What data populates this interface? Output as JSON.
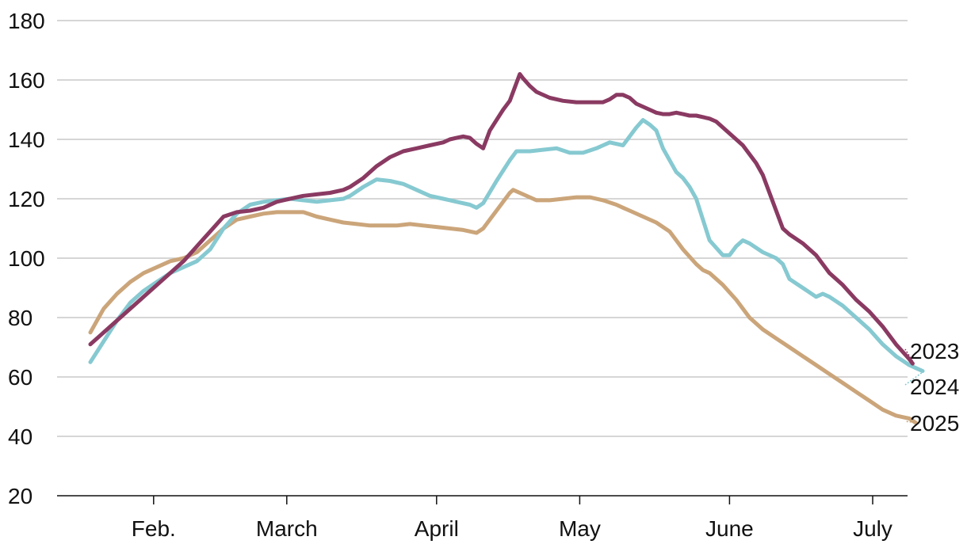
{
  "chart_data": {
    "type": "line",
    "title": "",
    "xlabel": "",
    "ylabel": "",
    "ylim": [
      20,
      180
    ],
    "y_ticks": [
      "20",
      "40",
      "60",
      "80",
      "100",
      "120",
      "140",
      "160",
      "180"
    ],
    "x_ticks": [
      "Feb.",
      "March",
      "April",
      "May",
      "June",
      "July"
    ],
    "grid": "horizontal",
    "legend": "inline labels at right end of lines",
    "series": [
      {
        "name": "2023",
        "color": "#8a3a62",
        "points": [
          [
            10,
            71
          ],
          [
            14,
            75
          ],
          [
            18,
            79
          ],
          [
            22,
            83
          ],
          [
            26,
            87
          ],
          [
            30,
            91
          ],
          [
            34,
            95
          ],
          [
            38,
            99
          ],
          [
            42,
            104
          ],
          [
            46,
            109
          ],
          [
            50,
            114
          ],
          [
            54,
            115.5
          ],
          [
            58,
            116
          ],
          [
            62,
            117
          ],
          [
            66,
            119
          ],
          [
            70,
            120
          ],
          [
            74,
            121
          ],
          [
            78,
            121.5
          ],
          [
            82,
            122
          ],
          [
            86,
            123
          ],
          [
            88,
            124
          ],
          [
            92,
            127
          ],
          [
            96,
            131
          ],
          [
            100,
            134
          ],
          [
            104,
            136
          ],
          [
            108,
            137
          ],
          [
            112,
            138
          ],
          [
            116,
            139
          ],
          [
            118,
            140
          ],
          [
            120,
            140.5
          ],
          [
            122,
            141
          ],
          [
            124,
            140.5
          ],
          [
            126,
            138.5
          ],
          [
            128,
            137
          ],
          [
            130,
            143
          ],
          [
            134,
            150
          ],
          [
            136,
            153
          ],
          [
            138,
            159
          ],
          [
            139,
            162
          ],
          [
            140,
            160.5
          ],
          [
            142,
            158
          ],
          [
            144,
            156
          ],
          [
            148,
            154
          ],
          [
            152,
            153
          ],
          [
            156,
            152.5
          ],
          [
            160,
            152.5
          ],
          [
            164,
            152.5
          ],
          [
            166,
            153.5
          ],
          [
            168,
            155
          ],
          [
            170,
            155
          ],
          [
            172,
            154
          ],
          [
            174,
            152
          ],
          [
            178,
            150
          ],
          [
            180,
            149
          ],
          [
            182,
            148.5
          ],
          [
            184,
            148.5
          ],
          [
            186,
            149
          ],
          [
            188,
            148.5
          ],
          [
            190,
            148
          ],
          [
            192,
            148
          ],
          [
            196,
            147
          ],
          [
            198,
            146
          ],
          [
            200,
            144
          ],
          [
            204,
            140
          ],
          [
            206,
            138
          ],
          [
            208,
            135
          ],
          [
            210,
            132
          ],
          [
            212,
            128
          ],
          [
            214,
            122
          ],
          [
            216,
            116
          ],
          [
            218,
            110
          ],
          [
            220,
            108
          ],
          [
            224,
            105
          ],
          [
            228,
            101
          ],
          [
            230,
            98
          ],
          [
            232,
            95
          ],
          [
            236,
            91
          ],
          [
            240,
            86
          ],
          [
            244,
            82
          ],
          [
            248,
            77
          ],
          [
            252,
            71
          ],
          [
            256,
            66
          ],
          [
            257,
            64.5
          ]
        ]
      },
      {
        "name": "2024",
        "color": "#86c9d1",
        "points": [
          [
            10,
            65
          ],
          [
            14,
            72
          ],
          [
            18,
            79
          ],
          [
            22,
            85
          ],
          [
            26,
            89
          ],
          [
            30,
            92
          ],
          [
            34,
            95
          ],
          [
            38,
            97
          ],
          [
            42,
            99
          ],
          [
            46,
            103
          ],
          [
            50,
            110
          ],
          [
            54,
            115
          ],
          [
            58,
            118
          ],
          [
            62,
            119
          ],
          [
            66,
            119.5
          ],
          [
            70,
            120
          ],
          [
            74,
            119.5
          ],
          [
            78,
            119
          ],
          [
            82,
            119.5
          ],
          [
            86,
            120
          ],
          [
            88,
            121
          ],
          [
            92,
            124
          ],
          [
            96,
            126.5
          ],
          [
            100,
            126
          ],
          [
            104,
            125
          ],
          [
            108,
            123
          ],
          [
            112,
            121
          ],
          [
            116,
            120
          ],
          [
            120,
            119
          ],
          [
            124,
            118
          ],
          [
            126,
            117
          ],
          [
            128,
            118.5
          ],
          [
            132,
            126
          ],
          [
            136,
            133
          ],
          [
            138,
            136
          ],
          [
            142,
            136
          ],
          [
            146,
            136.5
          ],
          [
            150,
            137
          ],
          [
            154,
            135.5
          ],
          [
            158,
            135.5
          ],
          [
            162,
            137
          ],
          [
            166,
            139
          ],
          [
            170,
            138
          ],
          [
            172,
            141
          ],
          [
            174,
            144
          ],
          [
            176,
            146.5
          ],
          [
            178,
            145
          ],
          [
            180,
            143
          ],
          [
            182,
            137
          ],
          [
            184,
            133
          ],
          [
            186,
            129
          ],
          [
            188,
            127
          ],
          [
            190,
            124
          ],
          [
            192,
            120
          ],
          [
            194,
            113
          ],
          [
            196,
            106
          ],
          [
            200,
            101
          ],
          [
            202,
            101
          ],
          [
            204,
            104
          ],
          [
            206,
            106
          ],
          [
            208,
            105
          ],
          [
            212,
            102
          ],
          [
            216,
            100
          ],
          [
            218,
            98
          ],
          [
            220,
            93
          ],
          [
            224,
            90
          ],
          [
            228,
            87
          ],
          [
            230,
            88
          ],
          [
            232,
            87
          ],
          [
            236,
            84
          ],
          [
            240,
            80
          ],
          [
            244,
            76
          ],
          [
            248,
            71
          ],
          [
            250,
            69
          ],
          [
            252,
            67
          ],
          [
            256,
            64
          ],
          [
            258,
            63
          ],
          [
            260,
            62
          ]
        ]
      },
      {
        "name": "2025",
        "color": "#cba57a",
        "points": [
          [
            10,
            75
          ],
          [
            14,
            83
          ],
          [
            18,
            88
          ],
          [
            22,
            92
          ],
          [
            26,
            95
          ],
          [
            30,
            97
          ],
          [
            34,
            99
          ],
          [
            38,
            100
          ],
          [
            42,
            102
          ],
          [
            46,
            106
          ],
          [
            50,
            110
          ],
          [
            54,
            113
          ],
          [
            58,
            114
          ],
          [
            62,
            115
          ],
          [
            66,
            115.5
          ],
          [
            70,
            115.5
          ],
          [
            74,
            115.5
          ],
          [
            78,
            114
          ],
          [
            82,
            113
          ],
          [
            86,
            112
          ],
          [
            90,
            111.5
          ],
          [
            94,
            111
          ],
          [
            98,
            111
          ],
          [
            102,
            111
          ],
          [
            106,
            111.5
          ],
          [
            110,
            111
          ],
          [
            114,
            110.5
          ],
          [
            118,
            110
          ],
          [
            122,
            109.5
          ],
          [
            126,
            108.5
          ],
          [
            128,
            110
          ],
          [
            130,
            113
          ],
          [
            134,
            119
          ],
          [
            136,
            122
          ],
          [
            137,
            123
          ],
          [
            140,
            121.5
          ],
          [
            144,
            119.5
          ],
          [
            148,
            119.5
          ],
          [
            152,
            120
          ],
          [
            156,
            120.5
          ],
          [
            160,
            120.5
          ],
          [
            164,
            119.5
          ],
          [
            168,
            118
          ],
          [
            170,
            117
          ],
          [
            172,
            116
          ],
          [
            176,
            114
          ],
          [
            180,
            112
          ],
          [
            184,
            109
          ],
          [
            186,
            106
          ],
          [
            188,
            103
          ],
          [
            192,
            98
          ],
          [
            194,
            96
          ],
          [
            196,
            95
          ],
          [
            200,
            91
          ],
          [
            204,
            86
          ],
          [
            208,
            80
          ],
          [
            212,
            76
          ],
          [
            216,
            73
          ],
          [
            220,
            70
          ],
          [
            224,
            67
          ],
          [
            228,
            64
          ],
          [
            232,
            61
          ],
          [
            236,
            58
          ],
          [
            240,
            55
          ],
          [
            244,
            52
          ],
          [
            248,
            49
          ],
          [
            252,
            47
          ],
          [
            256,
            46
          ],
          [
            258,
            44.5
          ]
        ]
      }
    ]
  }
}
